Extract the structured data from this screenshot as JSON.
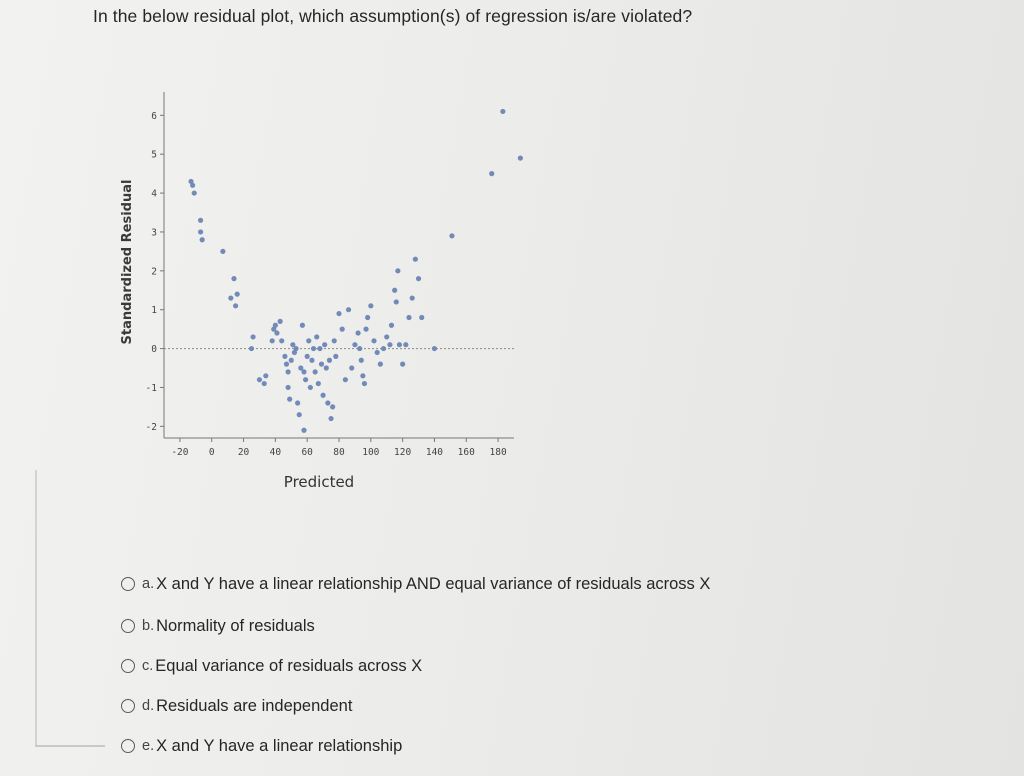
{
  "question": "In the below residual plot, which assumption(s) of regression is/are violated?",
  "chart_data": {
    "type": "scatter",
    "title": "",
    "xlabel": "Predicted",
    "ylabel": "Standardized Residual",
    "xlim": [
      -30,
      190
    ],
    "ylim": [
      -2.3,
      6.6
    ],
    "x_ticks": [
      "-20",
      "0",
      "20",
      "40",
      "60",
      "80",
      "100",
      "120",
      "140",
      "160",
      "180"
    ],
    "y_ticks": [
      "-2",
      "-1",
      "0",
      "1",
      "2",
      "3",
      "4",
      "5",
      "6"
    ],
    "reference_line": 0,
    "point_color": "#6b85b5",
    "points": [
      [
        -13,
        4.3
      ],
      [
        -12,
        4.2
      ],
      [
        -11,
        4.0
      ],
      [
        -7,
        3.3
      ],
      [
        -7,
        3.0
      ],
      [
        -6,
        2.8
      ],
      [
        7,
        2.5
      ],
      [
        14,
        1.8
      ],
      [
        12,
        1.3
      ],
      [
        16,
        1.4
      ],
      [
        15,
        1.1
      ],
      [
        25,
        0.0
      ],
      [
        26,
        0.3
      ],
      [
        30,
        -0.8
      ],
      [
        33,
        -0.9
      ],
      [
        34,
        -0.7
      ],
      [
        38,
        0.2
      ],
      [
        39,
        0.5
      ],
      [
        40,
        0.6
      ],
      [
        41,
        0.4
      ],
      [
        43,
        0.7
      ],
      [
        44,
        0.2
      ],
      [
        46,
        -0.2
      ],
      [
        47,
        -0.4
      ],
      [
        48,
        -0.6
      ],
      [
        48,
        -1.0
      ],
      [
        49,
        -1.3
      ],
      [
        50,
        -0.3
      ],
      [
        51,
        0.1
      ],
      [
        52,
        -0.1
      ],
      [
        53,
        0.0
      ],
      [
        54,
        -1.4
      ],
      [
        55,
        -1.7
      ],
      [
        58,
        -2.1
      ],
      [
        56,
        -0.5
      ],
      [
        57,
        0.6
      ],
      [
        58,
        -0.6
      ],
      [
        59,
        -0.8
      ],
      [
        60,
        -0.2
      ],
      [
        61,
        0.2
      ],
      [
        62,
        -1.0
      ],
      [
        63,
        -0.3
      ],
      [
        64,
        0.0
      ],
      [
        65,
        -0.6
      ],
      [
        66,
        0.3
      ],
      [
        67,
        -0.9
      ],
      [
        68,
        0.0
      ],
      [
        69,
        -0.4
      ],
      [
        70,
        -1.2
      ],
      [
        71,
        0.1
      ],
      [
        72,
        -0.5
      ],
      [
        73,
        -1.4
      ],
      [
        74,
        -0.3
      ],
      [
        75,
        -1.8
      ],
      [
        76,
        -1.5
      ],
      [
        77,
        0.2
      ],
      [
        78,
        -0.2
      ],
      [
        80,
        0.9
      ],
      [
        82,
        0.5
      ],
      [
        84,
        -0.8
      ],
      [
        86,
        1.0
      ],
      [
        88,
        -0.5
      ],
      [
        90,
        0.1
      ],
      [
        92,
        0.4
      ],
      [
        93,
        0.0
      ],
      [
        94,
        -0.3
      ],
      [
        95,
        -0.7
      ],
      [
        96,
        -0.9
      ],
      [
        97,
        0.5
      ],
      [
        98,
        0.8
      ],
      [
        100,
        1.1
      ],
      [
        102,
        0.2
      ],
      [
        104,
        -0.1
      ],
      [
        106,
        -0.4
      ],
      [
        108,
        0.0
      ],
      [
        110,
        0.3
      ],
      [
        112,
        0.1
      ],
      [
        113,
        0.6
      ],
      [
        115,
        1.5
      ],
      [
        117,
        2.0
      ],
      [
        116,
        1.2
      ],
      [
        118,
        0.1
      ],
      [
        120,
        -0.4
      ],
      [
        122,
        0.1
      ],
      [
        124,
        0.8
      ],
      [
        126,
        1.3
      ],
      [
        128,
        2.3
      ],
      [
        130,
        1.8
      ],
      [
        132,
        0.8
      ],
      [
        140,
        0.0
      ],
      [
        151,
        2.9
      ],
      [
        176,
        4.5
      ],
      [
        183,
        6.1
      ],
      [
        194,
        4.9
      ]
    ]
  },
  "options": [
    {
      "letter": "a.",
      "text": "X and Y have a linear relationship AND equal variance of residuals across X"
    },
    {
      "letter": "b.",
      "text": "Normality of residuals"
    },
    {
      "letter": "c.",
      "text": "Equal variance of residuals across X"
    },
    {
      "letter": "d.",
      "text": "Residuals are independent"
    },
    {
      "letter": "e.",
      "text": "X and Y have a linear relationship"
    }
  ]
}
